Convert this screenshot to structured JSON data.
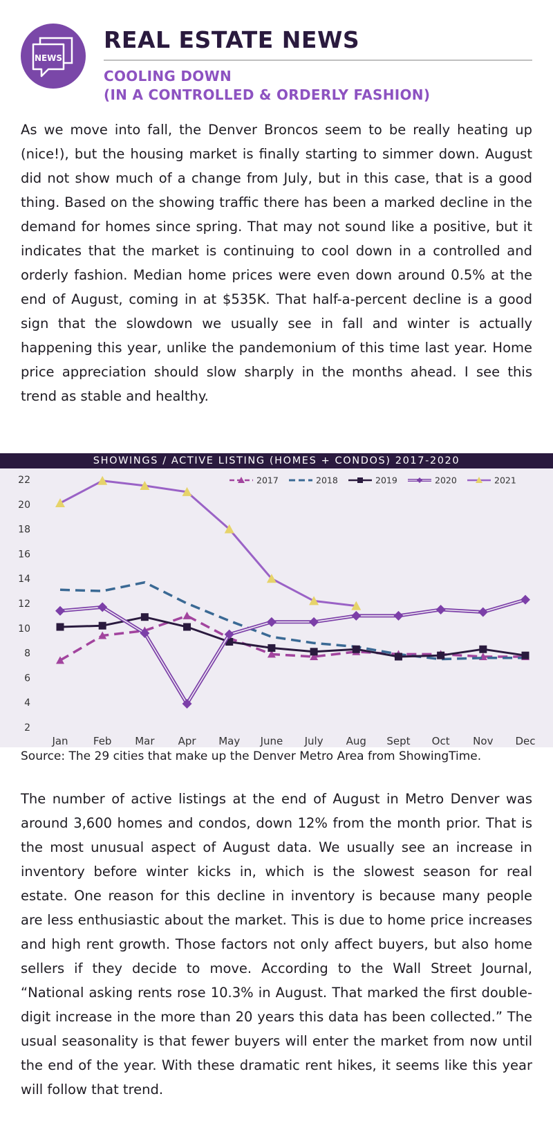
{
  "header": {
    "icon_label": "NEWS",
    "title": "REAL ESTATE NEWS",
    "subtitle_line1": "COOLING DOWN",
    "subtitle_line2": "(IN A CONTROLLED & ORDERLY FASHION)"
  },
  "article": {
    "paragraph1": "As we move into fall, the Denver Broncos seem to be really heating up (nice!), but the housing market is finally starting to simmer down. August did not show much of a change from July, but in this case, that is a good thing. Based on the showing traffic there has been a marked decline in the demand for homes since spring. That may not sound like a positive, but it indicates that the market is continuing to cool down in a controlled and orderly fashion. Median home prices were even down around 0.5% at the end of August, coming in at $535K. That half-a-percent decline is a good sign that the slowdown we usually see in fall and winter is actually happening this year, unlike the pandemonium of this time last year. Home price appreciation should slow sharply in the months ahead. I see this trend as stable and healthy.",
    "paragraph2": "The number of active listings at the end of August in Metro Denver was around 3,600 homes and condos, down 12% from the month prior. That is the most unusual aspect of August data. We usually see an increase in inventory before winter kicks in, which is the slowest season for real estate. One reason for this decline in inventory is because many people are less enthusiastic about the market. This is due to home price increases and high rent growth. Those factors not only affect buyers, but also home sellers if they decide to move. According to the Wall Street Journal, “National asking rents rose 10.3% in August. That marked the first double-digit increase in the more than 20 years this data has been collected.” The usual seasonality is that fewer buyers will enter the market from now until the end of the year. With these dramatic rent hikes, it seems like this year will follow that trend.",
    "source": "Source: The 29 cities that make up the Denver Metro Area from ShowingTime."
  },
  "chart_data": {
    "type": "line",
    "title": "SHOWINGS / ACTIVE LISTING (HOMES + CONDOS) 2017-2020",
    "categories": [
      "Jan",
      "Feb",
      "Mar",
      "Apr",
      "May",
      "June",
      "July",
      "Aug",
      "Sept",
      "Oct",
      "Nov",
      "Dec"
    ],
    "ylim": [
      2,
      22
    ],
    "yticks": [
      2,
      4,
      6,
      8,
      10,
      12,
      14,
      16,
      18,
      20,
      22
    ],
    "grid": false,
    "legend_position": "top-right",
    "series": [
      {
        "name": "2017",
        "color": "#a2449e",
        "style": "dashed",
        "marker": "triangle",
        "values": [
          7.4,
          9.4,
          9.8,
          11.0,
          9.2,
          7.9,
          7.7,
          8.1,
          7.9,
          7.9,
          7.7,
          7.7
        ]
      },
      {
        "name": "2018",
        "color": "#3a6994",
        "style": "dashed",
        "marker": "none",
        "values": [
          13.1,
          13.0,
          13.7,
          12.0,
          10.6,
          9.3,
          8.8,
          8.5,
          7.9,
          7.5,
          7.6,
          7.6
        ]
      },
      {
        "name": "2019",
        "color": "#2a1a3e",
        "style": "solid",
        "marker": "square",
        "values": [
          10.1,
          10.2,
          10.9,
          10.1,
          8.9,
          8.4,
          8.1,
          8.3,
          7.7,
          7.8,
          8.3,
          7.8
        ]
      },
      {
        "name": "2020",
        "color": "#7c3fa8",
        "style": "double",
        "marker": "diamond",
        "values": [
          11.4,
          11.7,
          9.6,
          3.9,
          9.5,
          10.5,
          10.5,
          11.0,
          11.0,
          11.5,
          11.3,
          12.3
        ]
      },
      {
        "name": "2021",
        "color": "#9a62c6",
        "style": "solid",
        "marker": "triangle-yellow",
        "values": [
          20.1,
          21.9,
          21.5,
          21.0,
          18.0,
          14.0,
          12.2,
          11.8,
          null,
          null,
          null,
          null
        ]
      }
    ]
  },
  "colors": {
    "title": "#2a1a3e",
    "accent": "#8d52c1",
    "band": "#2a1a3e",
    "chart_bg": "#efecf3",
    "marker_2021": "#e6d36a"
  }
}
